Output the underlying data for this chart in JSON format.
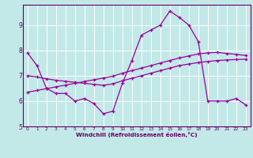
{
  "xlabel": "Windchill (Refroidissement éolien,°C)",
  "bg_color": "#c2e8e8",
  "line_color": "#990099",
  "grid_color": "#ffffff",
  "axis_color": "#660066",
  "xmin": 0,
  "xmax": 23,
  "ymin": 5,
  "ymax": 9.8,
  "yticks": [
    5,
    6,
    7,
    8,
    9
  ],
  "xticks": [
    0,
    1,
    2,
    3,
    4,
    5,
    6,
    7,
    8,
    9,
    10,
    11,
    12,
    13,
    14,
    15,
    16,
    17,
    18,
    19,
    20,
    21,
    22,
    23
  ],
  "line1_x": [
    0,
    1,
    2,
    3,
    4,
    5,
    6,
    7,
    8,
    9,
    10,
    11,
    12,
    13,
    14,
    15,
    16,
    17,
    18,
    19,
    20,
    21,
    22,
    23
  ],
  "line1_y": [
    7.9,
    7.4,
    6.5,
    6.3,
    6.3,
    6.0,
    6.1,
    5.9,
    5.5,
    5.6,
    6.7,
    7.6,
    8.6,
    8.8,
    9.0,
    9.55,
    9.3,
    9.0,
    8.35,
    6.0,
    6.0,
    6.0,
    6.1,
    5.85
  ],
  "line2_x": [
    0,
    1,
    2,
    3,
    4,
    5,
    6,
    7,
    8,
    9,
    10,
    11,
    12,
    13,
    14,
    15,
    16,
    17,
    18,
    19,
    20,
    21,
    22,
    23
  ],
  "line2_y": [
    6.35,
    6.42,
    6.49,
    6.56,
    6.63,
    6.7,
    6.77,
    6.84,
    6.91,
    6.98,
    7.1,
    7.2,
    7.3,
    7.4,
    7.5,
    7.6,
    7.7,
    7.78,
    7.86,
    7.9,
    7.92,
    7.88,
    7.84,
    7.8
  ],
  "line3_x": [
    0,
    1,
    2,
    3,
    4,
    5,
    6,
    7,
    8,
    9,
    10,
    11,
    12,
    13,
    14,
    15,
    16,
    17,
    18,
    19,
    20,
    21,
    22,
    23
  ],
  "line3_y": [
    7.0,
    6.95,
    6.88,
    6.82,
    6.78,
    6.74,
    6.7,
    6.66,
    6.62,
    6.68,
    6.8,
    6.9,
    7.0,
    7.1,
    7.2,
    7.3,
    7.4,
    7.46,
    7.52,
    7.56,
    7.6,
    7.62,
    7.64,
    7.65
  ]
}
